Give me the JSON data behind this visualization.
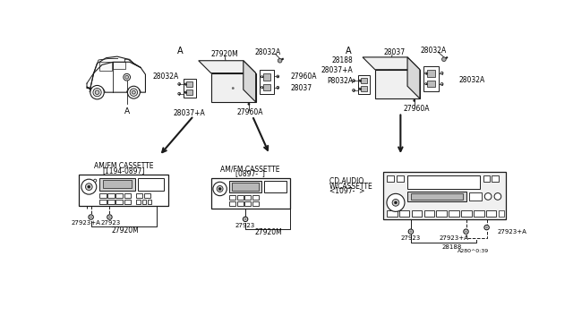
{
  "bg_color": "#ffffff",
  "line_color": "#1a1a1a",
  "gray_fill": "#d0d0d0",
  "white_fill": "#ffffff",
  "light_fill": "#f0f0f0",
  "labels": {
    "car_a": "A",
    "ex1_a": "A",
    "ex2_a": "A",
    "ex1_27920M": "27920M",
    "ex1_28032A_top": "28032A",
    "ex1_28032A_left": "28032A",
    "ex1_27960A_right": "27960A",
    "ex1_28037_right": "28037",
    "ex1_28037pA": "28037+A",
    "ex1_27960A_bot": "27960A",
    "ex2_28037_top": "28037",
    "ex2_28032A_top": "28032A",
    "ex2_28188": "28188",
    "ex2_28037pA": "28037+A",
    "ex2_p8032A": "P8032A",
    "ex2_28032A_right": "28032A",
    "ex2_27960A_bot": "27960A",
    "r1_title": "AM/FM CASSETTE",
    "r1_subtitle": "[1194-0897]",
    "r2_title": "AM/FM CASSETTE",
    "r2_subtitle": "[0897-  ]",
    "r3_title": "CD AUDIO",
    "r3_sub1": "W/CASSETTE",
    "r3_sub2": "<1097-  >",
    "r1_27923pA": "27923+A",
    "r1_27923": "27923",
    "r1_27920M": "27920M",
    "r2_27923": "27923",
    "r2_27920M": "27920M",
    "r4_27923": "27923",
    "r4_27923pA_m": "27923+A",
    "r4_27923pA_r": "27923+A",
    "r4_28188": "28188",
    "r4_suffix": "A280^0:39"
  }
}
